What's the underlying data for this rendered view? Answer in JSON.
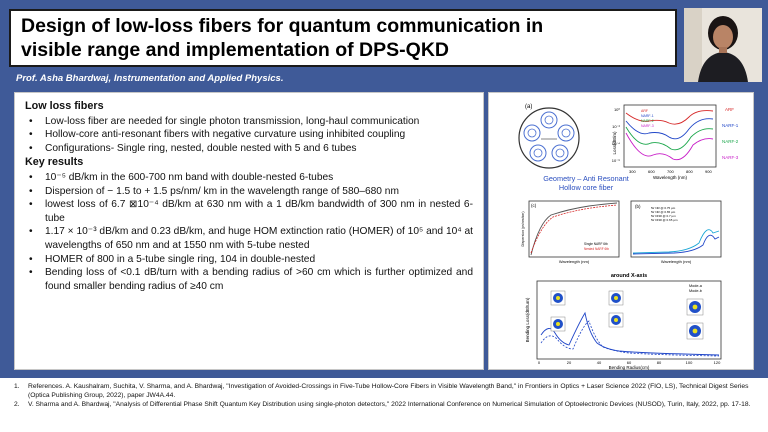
{
  "title": {
    "line1": "Design of low-loss fibers for quantum communication in",
    "line2": "visible range and implementation of DPS-QKD"
  },
  "author": "Prof. Asha Bhardwaj, Instrumentation and Applied Physics.",
  "low_loss": {
    "heading": "Low loss fibers",
    "items": [
      "Low-loss fiber are needed for single photon transmission, long-haul communication",
      "Hollow-core anti-resonant fibers with negative curvature using inhibited coupling",
      "Configurations- Single ring, nested, double nested with 5 and 6 tubes"
    ]
  },
  "key_results": {
    "heading": "Key results",
    "items": [
      "10⁻⁵ dB/km in the 600-700 nm band with double-nested 6-tubes",
      "Dispersion of − 1.5 to + 1.5 ps/nm/ km in the wavelength range of 580–680 nm",
      "lowest loss of 6.7 ⊠10⁻⁴ dB/km at 630 nm with a 1 dB/km bandwidth of 300 nm in nested 6-tube",
      "1.17 × 10⁻³ dB/km and 0.23 dB/km, and huge HOM extinction ratio (HOMER) of 10⁵ and 10⁴ at wavelengths of 650 nm and at 1550 nm with 5-tube nested",
      "HOMER of 800 in a 5-tube single ring, 104 in double-nested",
      "Bending loss of <0.1 dB/turn with a bending radius of >60 cm which is further optimized and found smaller bending radius of ≥40 cm"
    ]
  },
  "figures": {
    "geometry_caption": "Geometry – Anti Resonant Hollow core fiber",
    "geometry_label": "(a)",
    "loss_chart": {
      "ylabel": "Loss(dB/m)",
      "xlabel": "Wavelength (nm)",
      "xticks": [
        "300",
        "600",
        "700",
        "800",
        "900"
      ],
      "yticks": [
        "10⁰",
        "10⁻²",
        "10⁻⁴",
        "10⁻⁶"
      ],
      "legend": [
        "ARF",
        "NARF-1",
        "NARF-2",
        "NARF-3"
      ],
      "side_labels": [
        "ARF",
        "NARF-1",
        "NARF-2",
        "NARF-3"
      ]
    },
    "dispersion_chart": {
      "label": "(c)",
      "xlabel": "Wavelength (nm)",
      "ylabel": "Dispersion (ps/nm/km)",
      "legend": [
        "Single NARF 6tb",
        "Nested NARF 6tb"
      ]
    },
    "mode_chart": {
      "label": "(b)",
      "xlabel": "Wavelength (nm)",
      "legend": [
        "5tr NR @ 0.75 µm",
        "5tr NR @ 0.65 µm",
        "5tr DNR @ 0.7 µm",
        "5tr DNR @ 0.65 µm"
      ]
    },
    "bending_chart": {
      "title": "around X-axis",
      "xlabel": "Bending Radius(cm)",
      "ylabel": "Bending Loss(dB/turn)",
      "xticks": [
        "0",
        "20",
        "40",
        "60",
        "80",
        "100",
        "120"
      ],
      "legend": [
        "Mode-a",
        "Mode-b"
      ]
    }
  },
  "references": [
    {
      "num": "1.",
      "text": "References. A. Kaushalram, Suchita, V. Sharma, and A. Bhardwaj, \"Investigation of Avoided-Crossings in Five-Tube Hollow-Core Fibers in Visible Wavelength Band,\" in Frontiers in Optics + Laser Science 2022 (FIO, LS), Technical Digest Series (Optica Publishing Group, 2022), paper JW4A.44."
    },
    {
      "num": "2.",
      "text": "V. Sharma and A. Bhardwaj, \"Analysis of Differential Phase Shift Quantum Key Distribution using single-photon detectors,\" 2022 International Conference on Numerical Simulation of Optoelectronic Devices (NUSOD), Turin, Italy, 2022, pp. 17-18."
    }
  ],
  "colors": {
    "background": "#3f5a98",
    "caption_blue": "#2b4fbf",
    "series_red": "#d62828",
    "series_blue": "#2046c8",
    "series_green": "#1aa64a",
    "series_magenta": "#c81ec8"
  }
}
